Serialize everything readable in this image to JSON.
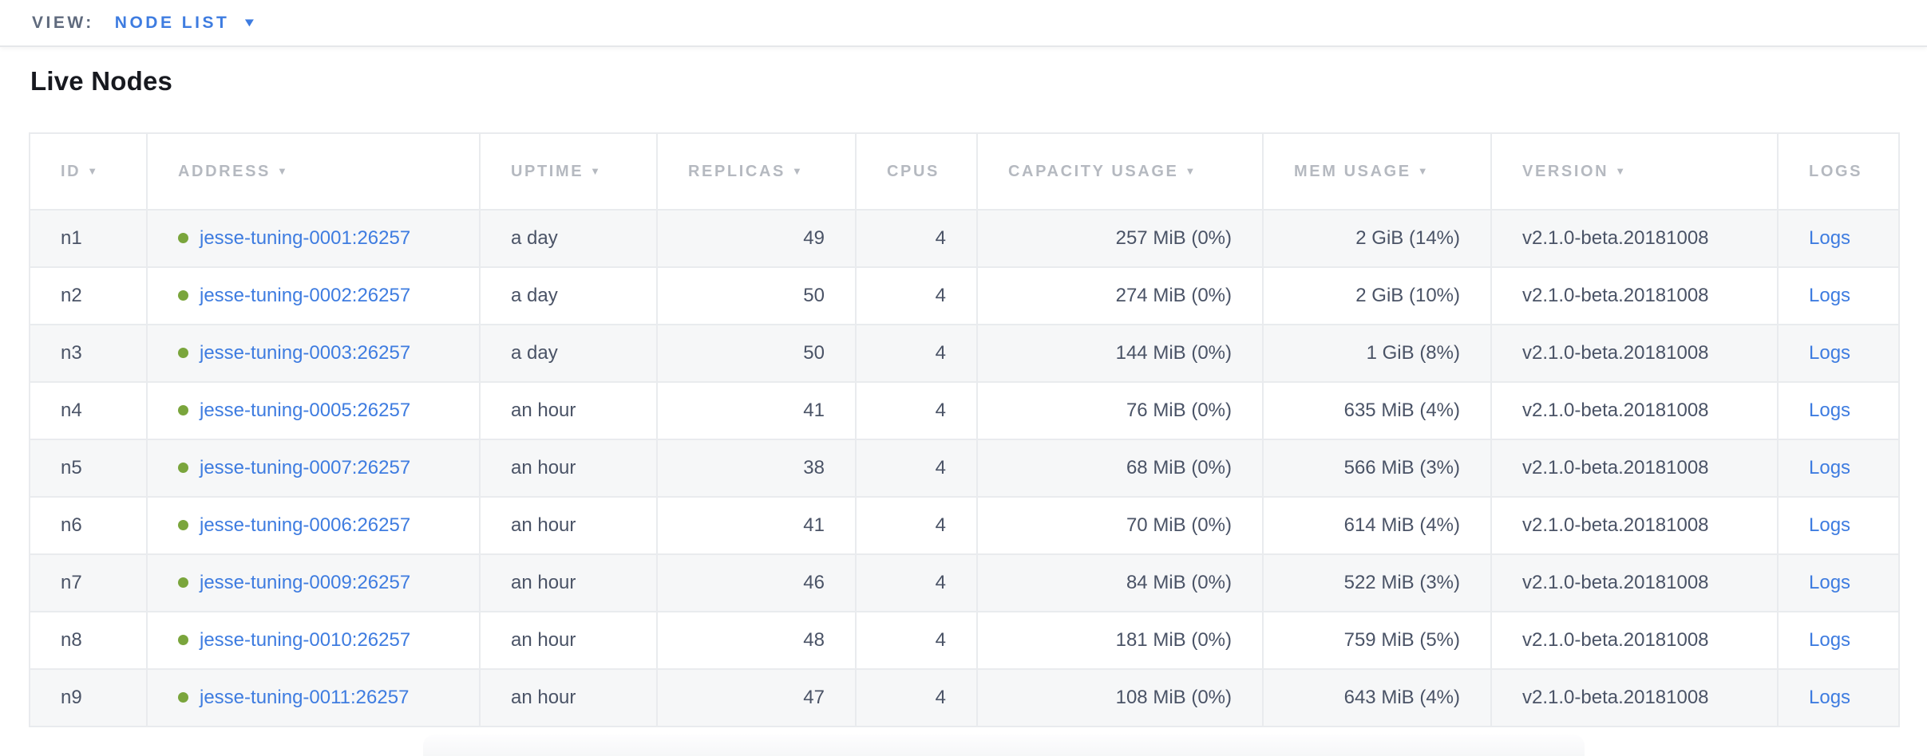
{
  "colors": {
    "accent_blue": "#3e7ce0",
    "link_blue": "#3e7ce0",
    "status_green": "#7aa53c"
  },
  "view_bar": {
    "label": "VIEW:",
    "selected_view": "NODE LIST",
    "dropdown_icon": "▼"
  },
  "page": {
    "title": "Live Nodes"
  },
  "nodes_table": {
    "sort_icon": "▼",
    "columns": [
      {
        "key": "id",
        "label": "ID",
        "sortable": true
      },
      {
        "key": "address",
        "label": "ADDRESS",
        "sortable": true
      },
      {
        "key": "uptime",
        "label": "UPTIME",
        "sortable": true
      },
      {
        "key": "replicas",
        "label": "REPLICAS",
        "sortable": true
      },
      {
        "key": "cpus",
        "label": "CPUS",
        "sortable": false
      },
      {
        "key": "capacity",
        "label": "CAPACITY USAGE",
        "sortable": true
      },
      {
        "key": "mem",
        "label": "MEM USAGE",
        "sortable": true
      },
      {
        "key": "version",
        "label": "VERSION",
        "sortable": true
      },
      {
        "key": "logs",
        "label": "LOGS",
        "sortable": false
      }
    ],
    "rows": [
      {
        "id": "n1",
        "status": "live",
        "address": "jesse-tuning-0001:26257",
        "uptime": "a day",
        "replicas": "49",
        "cpus": "4",
        "capacity": "257 MiB (0%)",
        "mem": "2 GiB (14%)",
        "version": "v2.1.0-beta.20181008",
        "logs": "Logs"
      },
      {
        "id": "n2",
        "status": "live",
        "address": "jesse-tuning-0002:26257",
        "uptime": "a day",
        "replicas": "50",
        "cpus": "4",
        "capacity": "274 MiB (0%)",
        "mem": "2 GiB (10%)",
        "version": "v2.1.0-beta.20181008",
        "logs": "Logs"
      },
      {
        "id": "n3",
        "status": "live",
        "address": "jesse-tuning-0003:26257",
        "uptime": "a day",
        "replicas": "50",
        "cpus": "4",
        "capacity": "144 MiB (0%)",
        "mem": "1 GiB (8%)",
        "version": "v2.1.0-beta.20181008",
        "logs": "Logs"
      },
      {
        "id": "n4",
        "status": "live",
        "address": "jesse-tuning-0005:26257",
        "uptime": "an hour",
        "replicas": "41",
        "cpus": "4",
        "capacity": "76 MiB (0%)",
        "mem": "635 MiB (4%)",
        "version": "v2.1.0-beta.20181008",
        "logs": "Logs"
      },
      {
        "id": "n5",
        "status": "live",
        "address": "jesse-tuning-0007:26257",
        "uptime": "an hour",
        "replicas": "38",
        "cpus": "4",
        "capacity": "68 MiB (0%)",
        "mem": "566 MiB (3%)",
        "version": "v2.1.0-beta.20181008",
        "logs": "Logs"
      },
      {
        "id": "n6",
        "status": "live",
        "address": "jesse-tuning-0006:26257",
        "uptime": "an hour",
        "replicas": "41",
        "cpus": "4",
        "capacity": "70 MiB (0%)",
        "mem": "614 MiB (4%)",
        "version": "v2.1.0-beta.20181008",
        "logs": "Logs"
      },
      {
        "id": "n7",
        "status": "live",
        "address": "jesse-tuning-0009:26257",
        "uptime": "an hour",
        "replicas": "46",
        "cpus": "4",
        "capacity": "84 MiB (0%)",
        "mem": "522 MiB (3%)",
        "version": "v2.1.0-beta.20181008",
        "logs": "Logs"
      },
      {
        "id": "n8",
        "status": "live",
        "address": "jesse-tuning-0010:26257",
        "uptime": "an hour",
        "replicas": "48",
        "cpus": "4",
        "capacity": "181 MiB (0%)",
        "mem": "759 MiB (5%)",
        "version": "v2.1.0-beta.20181008",
        "logs": "Logs"
      },
      {
        "id": "n9",
        "status": "live",
        "address": "jesse-tuning-0011:26257",
        "uptime": "an hour",
        "replicas": "47",
        "cpus": "4",
        "capacity": "108 MiB (0%)",
        "mem": "643 MiB (4%)",
        "version": "v2.1.0-beta.20181008",
        "logs": "Logs"
      }
    ]
  }
}
